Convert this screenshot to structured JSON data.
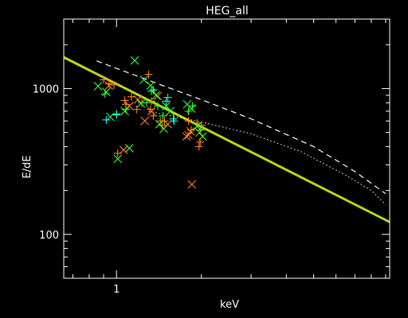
{
  "chart_data": {
    "type": "scatter",
    "title": "HEG_all",
    "xlabel": "keV",
    "ylabel": "E/dE",
    "xscale": "log",
    "yscale": "log",
    "xlim": [
      0.65,
      9.3
    ],
    "ylim": [
      50,
      3000
    ],
    "xticks": [
      {
        "value": 1,
        "label": "1"
      }
    ],
    "yticks": [
      {
        "value": 100,
        "label": "100"
      },
      {
        "value": 1000,
        "label": "1000"
      }
    ],
    "grid": false,
    "legend": "none",
    "colors": {
      "background": "#000000",
      "axes": "#ffffff",
      "orange": "#ff7f1e",
      "green": "#32ff32",
      "cyan": "#00ffff",
      "model_line": "#dcdc00",
      "model_line_overlay": "#7fd43a",
      "reference": "#ffffff"
    },
    "lines": [
      {
        "style": "solid",
        "color": "yellow",
        "x": [
          0.65,
          9.3
        ],
        "y": [
          1650,
          122
        ]
      },
      {
        "style": "solid",
        "color": "green",
        "x": [
          0.65,
          9.3
        ],
        "y": [
          1620,
          120
        ]
      },
      {
        "style": "dashed",
        "color": "white",
        "x": [
          0.85,
          1.4,
          2.0,
          3.0,
          5.0,
          7.0,
          9.0
        ],
        "y": [
          1550,
          1080,
          840,
          620,
          400,
          270,
          190
        ]
      },
      {
        "style": "dotted",
        "color": "white",
        "x": [
          1.3,
          2.0,
          3.0,
          4.5,
          6.5,
          8.0,
          9.0
        ],
        "y": [
          700,
          590,
          490,
          370,
          255,
          200,
          160
        ]
      }
    ],
    "series": [
      {
        "marker": "x",
        "color": "orange",
        "points": [
          [
            0.94,
            1050
          ],
          [
            1.06,
            380
          ],
          [
            1.11,
            760
          ],
          [
            1.19,
            840
          ],
          [
            1.26,
            600
          ],
          [
            1.33,
            700
          ],
          [
            1.4,
            890
          ],
          [
            1.52,
            570
          ],
          [
            1.77,
            470
          ],
          [
            1.8,
            480
          ],
          [
            1.83,
            510
          ],
          [
            1.85,
            220
          ],
          [
            1.97,
            500
          ]
        ]
      },
      {
        "marker": "+",
        "color": "orange",
        "points": [
          [
            0.9,
            1150
          ],
          [
            0.94,
            1080
          ],
          [
            0.98,
            1060
          ],
          [
            1.01,
            360
          ],
          [
            1.07,
            830
          ],
          [
            1.08,
            780
          ],
          [
            1.13,
            880
          ],
          [
            1.18,
            720
          ],
          [
            1.23,
            800
          ],
          [
            1.3,
            1250
          ],
          [
            1.32,
            720
          ],
          [
            1.33,
            820
          ],
          [
            1.35,
            650
          ],
          [
            1.43,
            600
          ],
          [
            1.45,
            560
          ],
          [
            1.48,
            600
          ],
          [
            1.8,
            600
          ],
          [
            1.84,
            520
          ],
          [
            1.93,
            580
          ],
          [
            1.96,
            400
          ],
          [
            1.98,
            430
          ],
          [
            2.0,
            560
          ]
        ]
      },
      {
        "marker": "x",
        "color": "green",
        "points": [
          [
            0.86,
            1040
          ],
          [
            0.92,
            950
          ],
          [
            0.95,
            640
          ],
          [
            1.01,
            330
          ],
          [
            1.07,
            700
          ],
          [
            1.11,
            390
          ],
          [
            1.16,
            1560
          ],
          [
            1.22,
            790
          ],
          [
            1.25,
            1150
          ],
          [
            1.32,
            1050
          ],
          [
            1.38,
            900
          ],
          [
            1.42,
            570
          ],
          [
            1.47,
            530
          ],
          [
            1.5,
            760
          ],
          [
            1.55,
            700
          ],
          [
            1.78,
            780
          ],
          [
            1.84,
            730
          ],
          [
            1.93,
            550
          ],
          [
            2.02,
            470
          ]
        ]
      },
      {
        "marker": "+",
        "color": "green",
        "points": [
          [
            0.91,
            920
          ],
          [
            1.0,
            670
          ],
          [
            1.08,
            720
          ],
          [
            1.28,
            800
          ],
          [
            1.33,
            960
          ],
          [
            1.4,
            760
          ],
          [
            1.46,
            650
          ],
          [
            1.52,
            870
          ],
          [
            1.59,
            620
          ],
          [
            1.8,
            700
          ],
          [
            1.86,
            760
          ],
          [
            1.98,
            520
          ]
        ]
      },
      {
        "marker": "+",
        "color": "cyan",
        "points": [
          [
            0.92,
            610
          ],
          [
            1.0,
            660
          ],
          [
            1.35,
            980
          ],
          [
            1.5,
            820
          ],
          [
            1.6,
            600
          ]
        ]
      }
    ]
  }
}
